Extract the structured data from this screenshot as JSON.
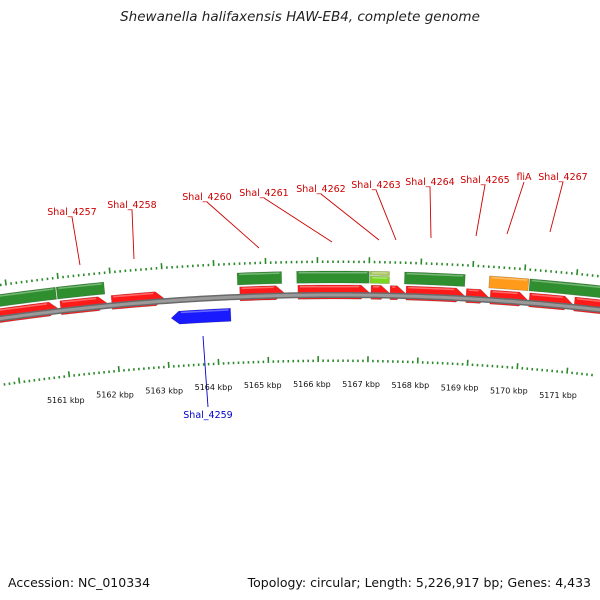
{
  "title": "Shewanella halifaxensis HAW-EB4, complete genome",
  "accession": "Accession: NC_010334",
  "topology": "Topology: circular; Length: 5,226,917 bp; Genes: 4,433",
  "colors": {
    "background": "#ffffff",
    "backbone": "#8a8a8a",
    "cds": "#ff1a1a",
    "gene_green": "#2f8f2f",
    "reverse_gene": "#1a1aff",
    "orange_gene": "#ff9a1a",
    "tick_green": "#2a8a2a",
    "label_red": "#cc0000",
    "label_blue": "#0000cc"
  },
  "map": {
    "kbp_labels": [
      "5161 kbp",
      "5162 kbp",
      "5163 kbp",
      "5164 kbp",
      "5165 kbp",
      "5166 kbp",
      "5167 kbp",
      "5168 kbp",
      "5169 kbp",
      "5170 kbp",
      "5171 kbp"
    ],
    "gene_labels": [
      {
        "text": "Shal_4257",
        "strand": "forward"
      },
      {
        "text": "Shal_4258",
        "strand": "forward"
      },
      {
        "text": "Shal_4260",
        "strand": "forward"
      },
      {
        "text": "Shal_4261",
        "strand": "forward"
      },
      {
        "text": "Shal_4262",
        "strand": "forward"
      },
      {
        "text": "Shal_4263",
        "strand": "forward"
      },
      {
        "text": "Shal_4264",
        "strand": "forward"
      },
      {
        "text": "Shal_4265",
        "strand": "forward"
      },
      {
        "text": "fliA",
        "strand": "forward"
      },
      {
        "text": "Shal_4267",
        "strand": "forward"
      },
      {
        "text": "Shal_4259",
        "strand": "reverse"
      }
    ]
  }
}
